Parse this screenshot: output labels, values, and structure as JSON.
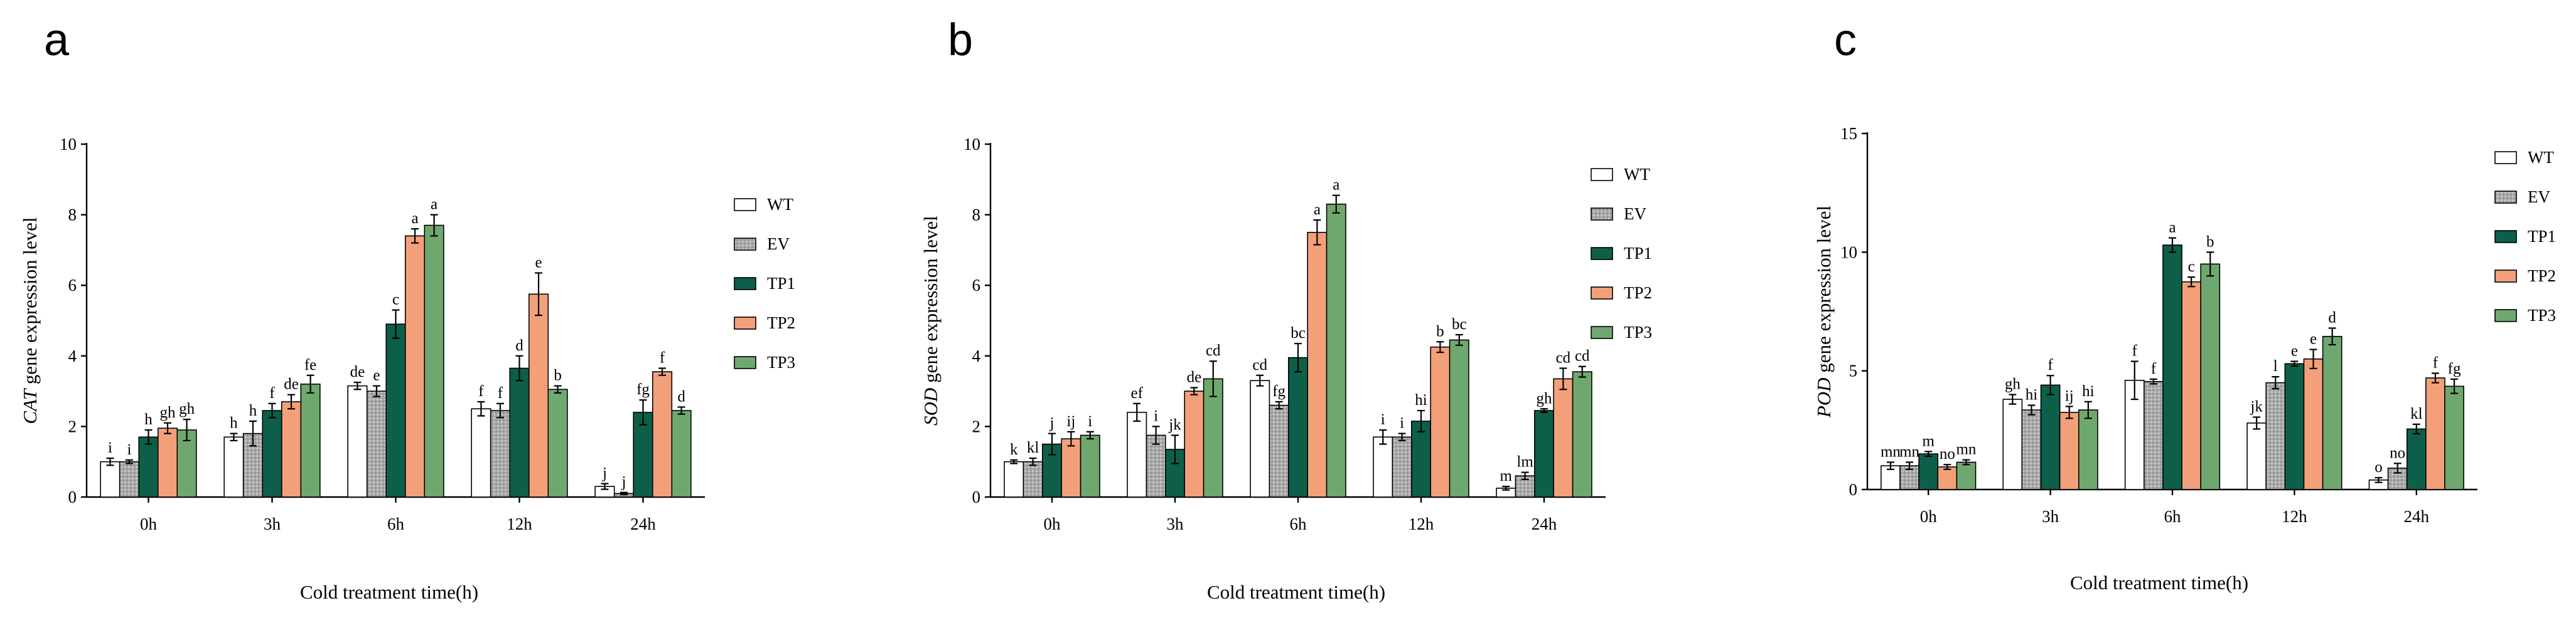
{
  "figure": {
    "series_names": [
      "WT",
      "EV",
      "TP1",
      "TP2",
      "TP3"
    ],
    "series_colors": [
      "#ffffff",
      "#a9a9a9",
      "#0e5f4a",
      "#f3a07a",
      "#6fa86e"
    ]
  },
  "chart_data": [
    {
      "type": "bar",
      "panel_label": "a",
      "title": "",
      "ylabel_gene": "CAT",
      "ylabel_rest": " gene expression level",
      "xlabel": "Cold treatment time(h)",
      "categories": [
        "0h",
        "3h",
        "6h",
        "12h",
        "24h"
      ],
      "ylim": [
        0,
        10
      ],
      "yticks": [
        0,
        2,
        4,
        6,
        8,
        10
      ],
      "legend_position": "right",
      "series": [
        {
          "name": "WT",
          "values": [
            1.0,
            1.7,
            3.15,
            2.5,
            0.3
          ],
          "errors": [
            0.1,
            0.1,
            0.1,
            0.2,
            0.08
          ],
          "labels": [
            "i",
            "h",
            "de",
            "f",
            "j"
          ]
        },
        {
          "name": "EV",
          "values": [
            1.0,
            1.8,
            3.0,
            2.45,
            0.1
          ],
          "errors": [
            0.05,
            0.35,
            0.15,
            0.2,
            0.03
          ],
          "labels": [
            "i",
            "h",
            "e",
            "f",
            "j"
          ]
        },
        {
          "name": "TP1",
          "values": [
            1.7,
            2.45,
            4.9,
            3.65,
            2.4
          ],
          "errors": [
            0.2,
            0.2,
            0.4,
            0.35,
            0.35
          ],
          "labels": [
            "h",
            "f",
            "c",
            "d",
            "fg"
          ]
        },
        {
          "name": "TP2",
          "values": [
            1.95,
            2.7,
            7.4,
            5.75,
            3.55
          ],
          "errors": [
            0.15,
            0.2,
            0.2,
            0.6,
            0.1
          ],
          "labels": [
            "gh",
            "de",
            "a",
            "e",
            "f"
          ]
        },
        {
          "name": "TP3",
          "values": [
            1.9,
            3.2,
            7.7,
            3.05,
            2.45
          ],
          "errors": [
            0.3,
            0.25,
            0.3,
            0.1,
            0.1
          ],
          "labels": [
            "gh",
            "fe",
            "a",
            "b",
            "d"
          ]
        }
      ]
    },
    {
      "type": "bar",
      "panel_label": "b",
      "title": "",
      "ylabel_gene": "SOD",
      "ylabel_rest": " gene expression level",
      "xlabel": "Cold treatment time(h)",
      "categories": [
        "0h",
        "3h",
        "6h",
        "12h",
        "24h"
      ],
      "ylim": [
        0,
        10
      ],
      "yticks": [
        0,
        2,
        4,
        6,
        8,
        10
      ],
      "legend_position": "right",
      "series": [
        {
          "name": "WT",
          "values": [
            1.0,
            2.4,
            3.3,
            1.7,
            0.25
          ],
          "errors": [
            0.05,
            0.25,
            0.15,
            0.2,
            0.05
          ],
          "labels": [
            "k",
            "ef",
            "cd",
            "i",
            "m"
          ]
        },
        {
          "name": "EV",
          "values": [
            1.0,
            1.75,
            2.6,
            1.7,
            0.6
          ],
          "errors": [
            0.1,
            0.25,
            0.1,
            0.1,
            0.1
          ],
          "labels": [
            "kl",
            "i",
            "fg",
            "i",
            "lm"
          ]
        },
        {
          "name": "TP1",
          "values": [
            1.5,
            1.35,
            3.95,
            2.15,
            2.45
          ],
          "errors": [
            0.3,
            0.4,
            0.4,
            0.3,
            0.05
          ],
          "labels": [
            "j",
            "jk",
            "bc",
            "hi",
            "gh"
          ]
        },
        {
          "name": "TP2",
          "values": [
            1.65,
            3.0,
            7.5,
            4.25,
            3.35
          ],
          "errors": [
            0.2,
            0.1,
            0.35,
            0.15,
            0.3
          ],
          "labels": [
            "ij",
            "de",
            "a",
            "b",
            "cd"
          ]
        },
        {
          "name": "TP3",
          "values": [
            1.75,
            3.35,
            8.3,
            4.45,
            3.55
          ],
          "errors": [
            0.1,
            0.5,
            0.25,
            0.15,
            0.15
          ],
          "labels": [
            "i",
            "cd",
            "a",
            "bc",
            "cd"
          ]
        }
      ]
    },
    {
      "type": "bar",
      "panel_label": "c",
      "title": "",
      "ylabel_gene": "POD",
      "ylabel_rest": " gene expression level",
      "xlabel": "Cold treatment time(h)",
      "categories": [
        "0h",
        "3h",
        "6h",
        "12h",
        "24h"
      ],
      "ylim": [
        0,
        15
      ],
      "yticks": [
        0,
        5,
        10,
        15
      ],
      "legend_position": "right",
      "series": [
        {
          "name": "WT",
          "values": [
            1.0,
            3.8,
            4.6,
            2.8,
            0.4
          ],
          "errors": [
            0.15,
            0.2,
            0.8,
            0.25,
            0.1
          ],
          "labels": [
            "mn",
            "gh",
            "f",
            "jk",
            "o"
          ]
        },
        {
          "name": "EV",
          "values": [
            1.0,
            3.35,
            4.55,
            4.5,
            0.9
          ],
          "errors": [
            0.15,
            0.2,
            0.1,
            0.25,
            0.2
          ],
          "labels": [
            "mn",
            "hi",
            "f",
            "l",
            "no"
          ]
        },
        {
          "name": "TP1",
          "values": [
            1.5,
            4.4,
            10.3,
            5.3,
            2.55
          ],
          "errors": [
            0.1,
            0.4,
            0.3,
            0.1,
            0.2
          ],
          "labels": [
            "m",
            "f",
            "a",
            "e",
            "kl"
          ]
        },
        {
          "name": "TP2",
          "values": [
            0.95,
            3.25,
            8.75,
            5.5,
            4.7
          ],
          "errors": [
            0.1,
            0.25,
            0.2,
            0.4,
            0.2
          ],
          "labels": [
            "no",
            "ij",
            "c",
            "e",
            "f"
          ]
        },
        {
          "name": "TP3",
          "values": [
            1.15,
            3.35,
            9.5,
            6.45,
            4.35
          ],
          "errors": [
            0.1,
            0.35,
            0.5,
            0.35,
            0.3
          ],
          "labels": [
            "mn",
            "hi",
            "b",
            "d",
            "fg"
          ]
        }
      ]
    }
  ]
}
